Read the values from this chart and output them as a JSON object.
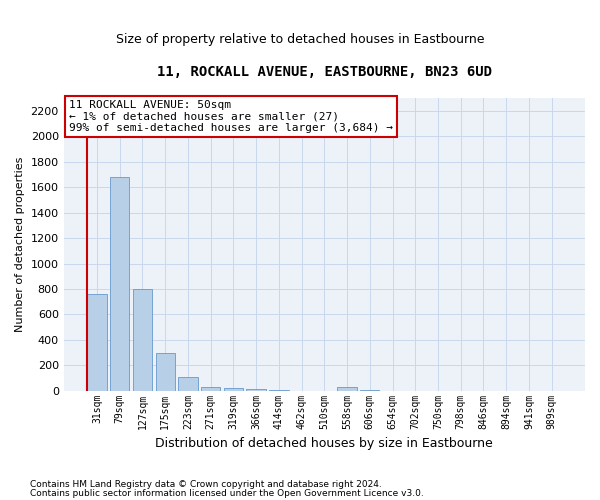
{
  "title": "11, ROCKALL AVENUE, EASTBOURNE, BN23 6UD",
  "subtitle": "Size of property relative to detached houses in Eastbourne",
  "xlabel": "Distribution of detached houses by size in Eastbourne",
  "ylabel": "Number of detached properties",
  "categories": [
    "31sqm",
    "79sqm",
    "127sqm",
    "175sqm",
    "223sqm",
    "271sqm",
    "319sqm",
    "366sqm",
    "414sqm",
    "462sqm",
    "510sqm",
    "558sqm",
    "606sqm",
    "654sqm",
    "702sqm",
    "750sqm",
    "798sqm",
    "846sqm",
    "894sqm",
    "941sqm",
    "989sqm"
  ],
  "values": [
    760,
    1680,
    800,
    295,
    110,
    30,
    20,
    12,
    5,
    0,
    0,
    32,
    2,
    0,
    0,
    0,
    0,
    0,
    0,
    0,
    0
  ],
  "bar_color": "#b8cfe8",
  "bar_edge_color": "#6699cc",
  "grid_color": "#c8d8ec",
  "background_color": "#edf2f9",
  "annotation_line1": "11 ROCKALL AVENUE: 50sqm",
  "annotation_line2": "← 1% of detached houses are smaller (27)",
  "annotation_line3": "99% of semi-detached houses are larger (3,684) →",
  "annotation_box_color": "#ffffff",
  "annotation_border_color": "#cc0000",
  "marker_line_color": "#cc0000",
  "ylim": [
    0,
    2300
  ],
  "yticks": [
    0,
    200,
    400,
    600,
    800,
    1000,
    1200,
    1400,
    1600,
    1800,
    2000,
    2200
  ],
  "footnote1": "Contains HM Land Registry data © Crown copyright and database right 2024.",
  "footnote2": "Contains public sector information licensed under the Open Government Licence v3.0."
}
